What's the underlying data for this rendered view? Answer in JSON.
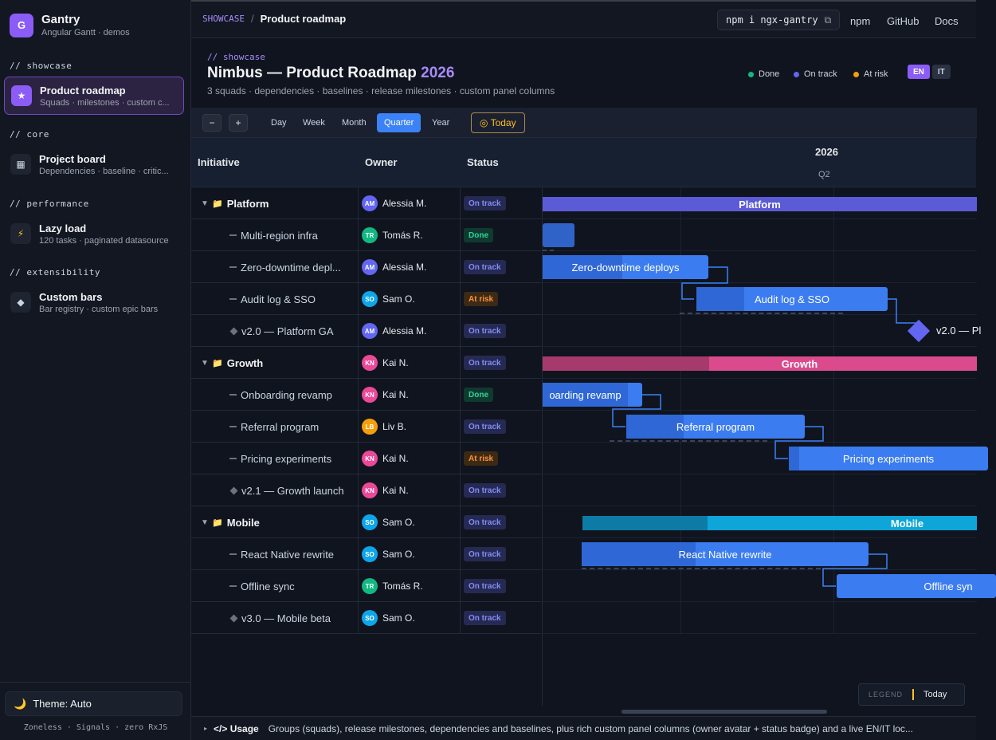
{
  "app": {
    "logo_letter": "G",
    "name": "Gantry",
    "tagline": "Angular Gantt · demos"
  },
  "nav": {
    "sections": [
      {
        "label": "// showcase",
        "item": {
          "icon": "star-icon",
          "glyph": "★",
          "title": "Product roadmap",
          "desc": "Squads · milestones · custom c..."
        }
      },
      {
        "label": "// core",
        "item": {
          "icon": "grid-icon",
          "glyph": "▦",
          "title": "Project board",
          "desc": "Dependencies · baseline · critic..."
        }
      },
      {
        "label": "// performance",
        "item": {
          "icon": "bolt-icon",
          "glyph": "⚡",
          "title": "Lazy load",
          "desc": "120 tasks · paginated datasource"
        }
      },
      {
        "label": "// extensibility",
        "item": {
          "icon": "diamond-icon",
          "glyph": "◆",
          "title": "Custom bars",
          "desc": "Bar registry · custom epic bars"
        }
      }
    ],
    "theme_label": "Theme: Auto",
    "footer": "Zoneless · Signals · zero RxJS"
  },
  "topbar": {
    "crumb_section": "SHOWCASE",
    "crumb_sep": "/",
    "crumb_page": "Product roadmap",
    "install_cmd": "npm i ngx-gantry",
    "links": [
      "npm",
      "GitHub",
      "Docs"
    ]
  },
  "header": {
    "comment": "// showcase",
    "title": "Nimbus — Product Roadmap",
    "year": "2026",
    "subtitle": "3 squads · dependencies · baselines · release milestones · custom panel columns",
    "legend": [
      {
        "label": "Done",
        "color": "#10b981"
      },
      {
        "label": "On track",
        "color": "#6366f1"
      },
      {
        "label": "At risk",
        "color": "#f59e0b"
      }
    ],
    "langs": [
      "EN",
      "IT"
    ]
  },
  "toolbar": {
    "zoom_out": "−",
    "zoom_in": "+",
    "scales": [
      "Day",
      "Week",
      "Month",
      "Quarter",
      "Year"
    ],
    "active_scale": "Quarter",
    "today_label": "◎ Today"
  },
  "grid": {
    "columns": [
      "Initiative",
      "Owner",
      "Status"
    ],
    "rows": [
      {
        "kind": "group",
        "name": "Platform",
        "owner": "Alessia M.",
        "initials": "AM",
        "av": "#6366f1",
        "status": "On track"
      },
      {
        "kind": "task",
        "name": "Multi-region infra",
        "owner": "Tomás R.",
        "initials": "TR",
        "av": "#10b981",
        "status": "Done"
      },
      {
        "kind": "task",
        "name": "Zero-downtime depl...",
        "owner": "Alessia M.",
        "initials": "AM",
        "av": "#6366f1",
        "status": "On track"
      },
      {
        "kind": "task",
        "name": "Audit log & SSO",
        "owner": "Sam O.",
        "initials": "SO",
        "av": "#0ea5e9",
        "status": "At risk"
      },
      {
        "kind": "milestone",
        "name": "v2.0 — Platform GA",
        "owner": "Alessia M.",
        "initials": "AM",
        "av": "#6366f1",
        "status": "On track"
      },
      {
        "kind": "group",
        "name": "Growth",
        "owner": "Kai N.",
        "initials": "KN",
        "av": "#ec4899",
        "status": "On track"
      },
      {
        "kind": "task",
        "name": "Onboarding revamp",
        "owner": "Kai N.",
        "initials": "KN",
        "av": "#ec4899",
        "status": "Done"
      },
      {
        "kind": "task",
        "name": "Referral program",
        "owner": "Liv B.",
        "initials": "LB",
        "av": "#f59e0b",
        "status": "On track"
      },
      {
        "kind": "task",
        "name": "Pricing experiments",
        "owner": "Kai N.",
        "initials": "KN",
        "av": "#ec4899",
        "status": "At risk"
      },
      {
        "kind": "milestone",
        "name": "v2.1 — Growth launch",
        "owner": "Kai N.",
        "initials": "KN",
        "av": "#ec4899",
        "status": "On track"
      },
      {
        "kind": "group",
        "name": "Mobile",
        "owner": "Sam O.",
        "initials": "SO",
        "av": "#0ea5e9",
        "status": "On track"
      },
      {
        "kind": "task",
        "name": "React Native rewrite",
        "owner": "Sam O.",
        "initials": "SO",
        "av": "#0ea5e9",
        "status": "On track"
      },
      {
        "kind": "task",
        "name": "Offline sync",
        "owner": "Tomás R.",
        "initials": "TR",
        "av": "#10b981",
        "status": "On track"
      },
      {
        "kind": "milestone",
        "name": "v3.0 — Mobile beta",
        "owner": "Sam O.",
        "initials": "SO",
        "av": "#0ea5e9",
        "status": "On track"
      }
    ],
    "status_styles": {
      "On track": {
        "bg": "#262a52",
        "fg": "#818cf8"
      },
      "Done": {
        "bg": "#0f3a30",
        "fg": "#34d399"
      },
      "At risk": {
        "bg": "#3d2a14",
        "fg": "#fb923c"
      }
    }
  },
  "timeline": {
    "year": "2026",
    "quarter": "Q2",
    "bars": {
      "platform": "Platform",
      "zero_downtime": "Zero-downtime deploys",
      "audit": "Audit log & SSO",
      "platform_ga": "v2.0 — Pl",
      "growth": "Growth",
      "onboarding": "oarding revamp",
      "referral": "Referral program",
      "pricing": "Pricing experiments",
      "mobile": "Mobile",
      "react_native": "React Native rewrite",
      "offline": "Offline syn"
    },
    "legend_title": "LEGEND",
    "legend_today": "Today"
  },
  "usage": {
    "title": "</> Usage",
    "desc": "Groups (squads), release milestones, dependencies and baselines, plus rich custom panel columns (owner avatar + status badge) and a live EN/IT loc..."
  }
}
